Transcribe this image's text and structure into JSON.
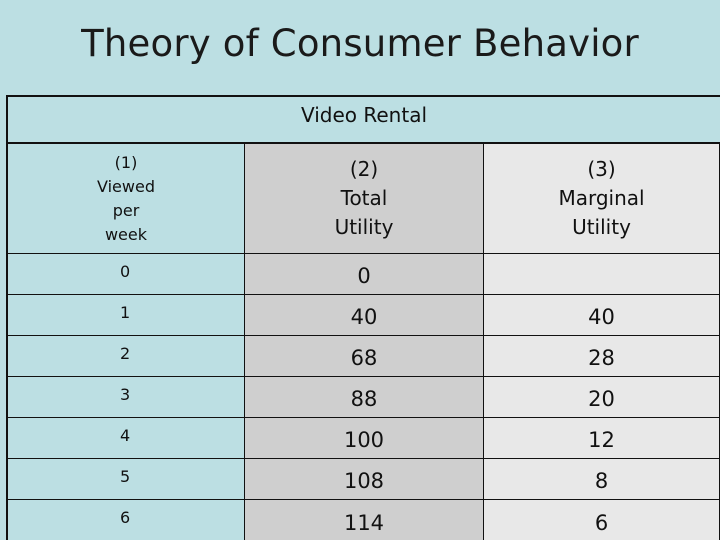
{
  "title": "Theory of Consumer Behavior",
  "table": {
    "caption": "Video Rental",
    "headers": [
      [
        "(1)",
        "Viewed",
        "per",
        "week"
      ],
      [
        "(2)",
        "Total",
        "Utility"
      ],
      [
        "(3)",
        "Marginal",
        "Utility"
      ]
    ],
    "rows": [
      [
        "0",
        "0",
        ""
      ],
      [
        "1",
        "40",
        "40"
      ],
      [
        "2",
        "68",
        "28"
      ],
      [
        "3",
        "88",
        "20"
      ],
      [
        "4",
        "100",
        "12"
      ],
      [
        "5",
        "108",
        "8"
      ],
      [
        "6",
        "114",
        "6"
      ]
    ]
  },
  "colors": {
    "background": "#bcdfe3",
    "column2": "#cfcfcf",
    "column3": "#e8e8e8"
  }
}
